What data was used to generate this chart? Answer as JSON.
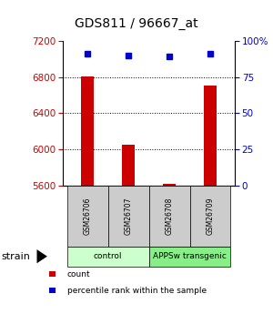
{
  "title": "GDS811 / 96667_at",
  "samples": [
    "GSM26706",
    "GSM26707",
    "GSM26708",
    "GSM26709"
  ],
  "count_values": [
    6810,
    6050,
    5615,
    6700
  ],
  "percentile_values": [
    91,
    90,
    89,
    91
  ],
  "ylim_left": [
    5600,
    7200
  ],
  "ylim_right": [
    0,
    100
  ],
  "yticks_left": [
    5600,
    6000,
    6400,
    6800,
    7200
  ],
  "yticks_right": [
    0,
    25,
    50,
    75,
    100
  ],
  "grid_values": [
    6000,
    6400,
    6800
  ],
  "bar_color": "#cc0000",
  "dot_color": "#0000cc",
  "groups": [
    {
      "label": "control",
      "samples": [
        0,
        1
      ],
      "color": "#ccffcc"
    },
    {
      "label": "APPSw transgenic",
      "samples": [
        2,
        3
      ],
      "color": "#88ee88"
    }
  ],
  "strain_label": "strain",
  "legend": [
    {
      "label": "count",
      "color": "#cc0000"
    },
    {
      "label": "percentile rank within the sample",
      "color": "#0000cc"
    }
  ],
  "tick_color_left": "#cc0000",
  "tick_color_right": "#0000cc",
  "sample_box_color": "#cccccc",
  "background_color": "#ffffff"
}
